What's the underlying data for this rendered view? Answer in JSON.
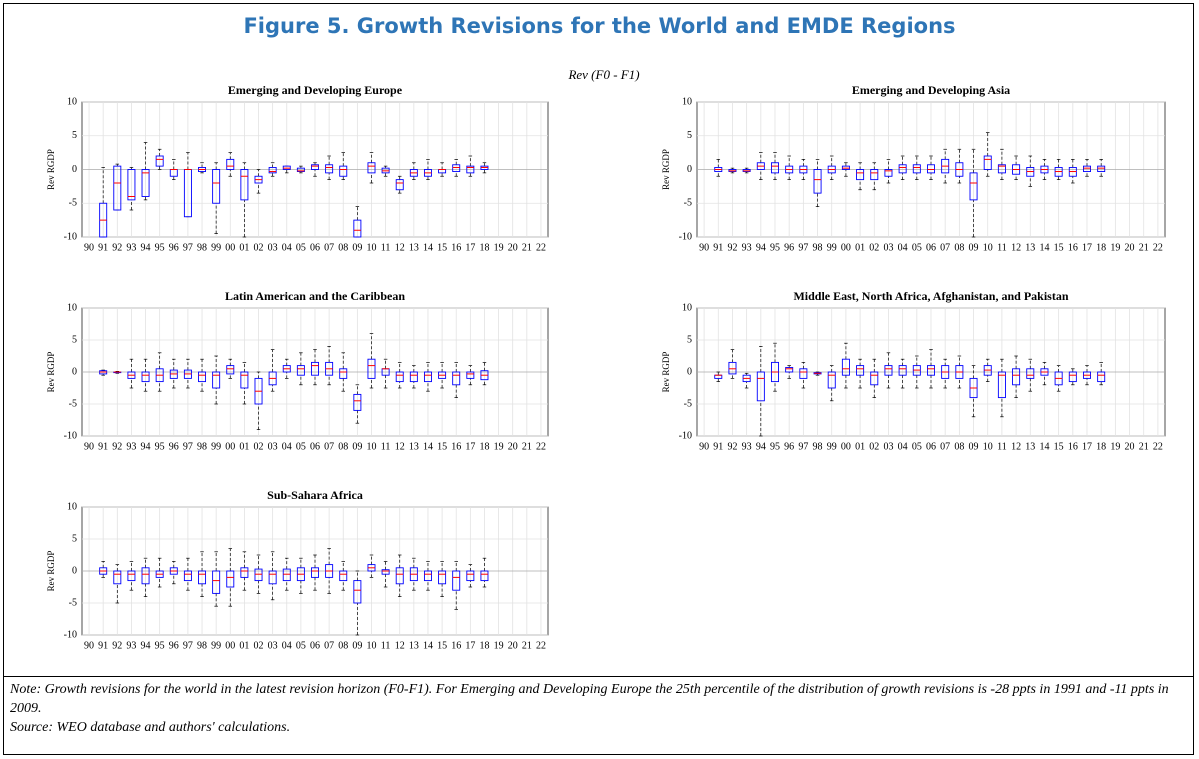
{
  "title": "Figure 5. Growth Revisions for the World and EMDE Regions",
  "suptitle": "Rev (F0 - F1)",
  "note": "Note: Growth revisions for the world in the latest revision horizon (F0-F1). For Emerging and Developing Europe the 25th percentile of the distribution of growth revisions is -28 ppts in 1991 and -11 ppts in 2009.",
  "source": "Source: WEO database and authors' calculations.",
  "chart_data": [
    {
      "type": "box",
      "title": "Emerging and Developing Europe",
      "ylabel": "Rev RGDP",
      "color": "#0000ff",
      "median_color": "#ff0000",
      "grid": true,
      "ylim": [
        -10,
        10
      ],
      "yticks": [
        -10,
        -5,
        0,
        5,
        10
      ],
      "categories": [
        "90",
        "91",
        "92",
        "93",
        "94",
        "95",
        "96",
        "97",
        "98",
        "99",
        "00",
        "01",
        "02",
        "03",
        "04",
        "05",
        "06",
        "07",
        "08",
        "09",
        "10",
        "11",
        "12",
        "13",
        "14",
        "15",
        "16",
        "17",
        "18",
        "19",
        "20",
        "21",
        "22"
      ],
      "boxes": [
        null,
        [
          -10,
          -10,
          -7.5,
          -5,
          0.3
        ],
        [
          -6,
          -6,
          -2,
          0.5,
          0.8
        ],
        [
          -6,
          -4.5,
          -4,
          0,
          0.3
        ],
        [
          -4.5,
          -4,
          -0.5,
          0,
          4
        ],
        [
          0,
          0.5,
          1.5,
          2,
          3
        ],
        [
          -1.5,
          -1,
          0,
          0,
          1.5
        ],
        [
          -7,
          -7,
          0,
          0,
          2.5
        ],
        [
          -0.5,
          -0.3,
          0,
          0.3,
          1
        ],
        [
          -9.5,
          -5,
          -2,
          0,
          1
        ],
        [
          -1,
          0,
          0.5,
          1.5,
          2.5
        ],
        [
          -10,
          -4.5,
          -1,
          0,
          1
        ],
        [
          -3.5,
          -2,
          -1.5,
          -1,
          0
        ],
        [
          -1,
          -0.5,
          -0.3,
          0.3,
          1
        ],
        [
          -0.5,
          0,
          0.2,
          0.5,
          0.5
        ],
        [
          -0.5,
          -0.3,
          -0.2,
          0.2,
          0.5
        ],
        [
          -1,
          0,
          0.5,
          0.7,
          1
        ],
        [
          -1.5,
          -0.5,
          0.3,
          0.7,
          2
        ],
        [
          -1.5,
          -1,
          0,
          0.5,
          2.5
        ],
        [
          -10,
          -10,
          -9,
          -7.5,
          -5.5
        ],
        [
          -2,
          -0.5,
          0.5,
          1,
          2.5
        ],
        [
          -1,
          -0.5,
          -0.2,
          0.2,
          0.5
        ],
        [
          -3.5,
          -3,
          -2,
          -1.5,
          -1
        ],
        [
          -1.5,
          -1,
          -0.5,
          0,
          1
        ],
        [
          -1.5,
          -1,
          -0.5,
          0,
          1.5
        ],
        [
          -1,
          -0.5,
          0,
          0,
          1
        ],
        [
          -1,
          -0.3,
          0.3,
          0.7,
          1.5
        ],
        [
          -1,
          -0.5,
          0.3,
          0.5,
          2
        ],
        [
          -0.5,
          0,
          0.3,
          0.5,
          1
        ],
        null,
        null,
        null,
        null
      ]
    },
    {
      "type": "box",
      "title": "Emerging and Developing Asia",
      "ylabel": "Rev RGDP",
      "color": "#0000ff",
      "median_color": "#ff0000",
      "grid": true,
      "ylim": [
        -10,
        10
      ],
      "yticks": [
        -10,
        -5,
        0,
        5,
        10
      ],
      "categories": [
        "90",
        "91",
        "92",
        "93",
        "94",
        "95",
        "96",
        "97",
        "98",
        "99",
        "00",
        "01",
        "02",
        "03",
        "04",
        "05",
        "06",
        "07",
        "08",
        "09",
        "10",
        "11",
        "12",
        "13",
        "14",
        "15",
        "16",
        "17",
        "18",
        "19",
        "20",
        "21",
        "22"
      ],
      "boxes": [
        null,
        [
          -1,
          -0.3,
          0,
          0.3,
          1.5
        ],
        [
          -0.5,
          -0.3,
          -0.2,
          0,
          0.2
        ],
        [
          -0.5,
          -0.3,
          -0.2,
          0,
          0.2
        ],
        [
          -1.5,
          0,
          0.5,
          1,
          2.5
        ],
        [
          -1.5,
          -0.5,
          0.5,
          1,
          2.5
        ],
        [
          -1.5,
          -0.5,
          0,
          0.5,
          2
        ],
        [
          -1.5,
          -0.5,
          0,
          0.5,
          1.5
        ],
        [
          -5.5,
          -3.5,
          -1.5,
          0,
          1.5
        ],
        [
          -1.5,
          -0.5,
          0,
          0.5,
          2
        ],
        [
          -1,
          0,
          0.2,
          0.5,
          1
        ],
        [
          -3,
          -1.5,
          -0.5,
          0,
          1
        ],
        [
          -3,
          -1.5,
          -0.5,
          0,
          1
        ],
        [
          -2,
          -1,
          -0.2,
          0,
          1.5
        ],
        [
          -1.5,
          -0.5,
          0.3,
          0.7,
          2
        ],
        [
          -1.5,
          -0.5,
          0.3,
          0.7,
          2
        ],
        [
          -1.5,
          -0.5,
          0,
          0.7,
          2
        ],
        [
          -2,
          -0.5,
          0.5,
          1.5,
          3
        ],
        [
          -2,
          -1,
          0,
          1,
          3
        ],
        [
          -10,
          -4.5,
          -2,
          -0.5,
          3
        ],
        [
          -1,
          0,
          1.5,
          2,
          5.5
        ],
        [
          -1.5,
          -0.5,
          0.5,
          0.7,
          3
        ],
        [
          -1.5,
          -0.7,
          0,
          0.7,
          2
        ],
        [
          -2.5,
          -1,
          -0.3,
          0.3,
          2
        ],
        [
          -1.5,
          -0.5,
          0,
          0.5,
          1.5
        ],
        [
          -1.5,
          -1,
          -0.3,
          0.3,
          1.5
        ],
        [
          -2,
          -1,
          -0.3,
          0.3,
          1.5
        ],
        [
          -1,
          -0.3,
          0.2,
          0.5,
          1.5
        ],
        [
          -1,
          -0.3,
          0.2,
          0.5,
          1.5
        ],
        null,
        null,
        null,
        null
      ]
    },
    {
      "type": "box",
      "title": "Latin American and the Caribbean",
      "ylabel": "Rev RGDP",
      "color": "#0000ff",
      "median_color": "#ff0000",
      "grid": true,
      "ylim": [
        -10,
        10
      ],
      "yticks": [
        -10,
        -5,
        0,
        5,
        10
      ],
      "categories": [
        "90",
        "91",
        "92",
        "93",
        "94",
        "95",
        "96",
        "97",
        "98",
        "99",
        "00",
        "01",
        "02",
        "03",
        "04",
        "05",
        "06",
        "07",
        "08",
        "09",
        "10",
        "11",
        "12",
        "13",
        "14",
        "15",
        "16",
        "17",
        "18",
        "19",
        "20",
        "21",
        "22"
      ],
      "boxes": [
        null,
        [
          -0.5,
          -0.3,
          0,
          0.2,
          0.3
        ],
        [
          -0.2,
          -0.1,
          0,
          0,
          0.1
        ],
        [
          -2.5,
          -1,
          -0.5,
          0,
          2
        ],
        [
          -3,
          -1.5,
          -0.5,
          0,
          2
        ],
        [
          -3,
          -1.5,
          -0.5,
          0.5,
          3
        ],
        [
          -2.5,
          -1,
          -0.3,
          0.3,
          2
        ],
        [
          -2.5,
          -1,
          -0.3,
          0.3,
          2
        ],
        [
          -3,
          -1.5,
          -0.5,
          0,
          2
        ],
        [
          -5,
          -2.5,
          -0.5,
          0,
          2.5
        ],
        [
          -1,
          -0.3,
          0.5,
          1,
          2
        ],
        [
          -5,
          -2.5,
          -0.5,
          0,
          1.5
        ],
        [
          -9,
          -5,
          -3,
          -1,
          0
        ],
        [
          -3,
          -2,
          -1,
          0,
          3.5
        ],
        [
          -1,
          0,
          0.5,
          1,
          2
        ],
        [
          -2,
          -0.5,
          0.5,
          1,
          3
        ],
        [
          -2,
          -0.5,
          1,
          1.5,
          3.5
        ],
        [
          -2,
          -0.5,
          0.5,
          1.5,
          4
        ],
        [
          -3,
          -1,
          0,
          0.5,
          3
        ],
        [
          -8,
          -6,
          -4.5,
          -3.5,
          -2
        ],
        [
          -2.5,
          -1,
          1,
          2,
          6
        ],
        [
          -2.5,
          -0.5,
          0.5,
          0.5,
          2
        ],
        [
          -2.5,
          -1.5,
          -0.5,
          0,
          1.5
        ],
        [
          -2.5,
          -1.5,
          -0.5,
          0,
          1
        ],
        [
          -3,
          -1.5,
          -0.5,
          0,
          1.5
        ],
        [
          -2.5,
          -1,
          -0.5,
          0,
          1.5
        ],
        [
          -4,
          -2,
          -0.5,
          0,
          1.5
        ],
        [
          -2,
          -1,
          -0.3,
          0,
          1
        ],
        [
          -2,
          -1.2,
          -0.5,
          0.2,
          1.5
        ],
        null,
        null,
        null,
        null
      ]
    },
    {
      "type": "box",
      "title": "Middle East, North Africa, Afghanistan, and Pakistan",
      "ylabel": "Rev RGDP",
      "color": "#0000ff",
      "median_color": "#ff0000",
      "grid": true,
      "ylim": [
        -10,
        10
      ],
      "yticks": [
        -10,
        -5,
        0,
        5,
        10
      ],
      "categories": [
        "90",
        "91",
        "92",
        "93",
        "94",
        "95",
        "96",
        "97",
        "98",
        "99",
        "00",
        "01",
        "02",
        "03",
        "04",
        "05",
        "06",
        "07",
        "08",
        "09",
        "10",
        "11",
        "12",
        "13",
        "14",
        "15",
        "16",
        "17",
        "18",
        "19",
        "20",
        "21",
        "22"
      ],
      "boxes": [
        null,
        [
          -1.5,
          -1,
          -0.5,
          -0.5,
          0
        ],
        [
          -1,
          -0.3,
          0.5,
          1.5,
          3.5
        ],
        [
          -2.5,
          -1.5,
          -1,
          -0.5,
          -0.2
        ],
        [
          -10,
          -4.5,
          -1,
          0,
          4
        ],
        [
          -3,
          -1.5,
          0,
          1.5,
          4.5
        ],
        [
          -1,
          0,
          0.5,
          0.7,
          1
        ],
        [
          -2.5,
          -1,
          0,
          0.5,
          1.5
        ],
        [
          -0.5,
          -0.3,
          -0.2,
          -0.1,
          0
        ],
        [
          -4.5,
          -2.5,
          -0.5,
          0,
          1
        ],
        [
          -2.5,
          -0.5,
          0.5,
          2,
          4.5
        ],
        [
          -2.5,
          -0.5,
          0.5,
          1,
          2
        ],
        [
          -4,
          -2,
          -0.5,
          0,
          2
        ],
        [
          -2.5,
          -0.5,
          0.5,
          1,
          3
        ],
        [
          -2.5,
          -0.5,
          0.5,
          1,
          2
        ],
        [
          -2.5,
          -0.5,
          0.3,
          1,
          2.5
        ],
        [
          -2.5,
          -0.5,
          0.5,
          1,
          3.5
        ],
        [
          -2.5,
          -1,
          0,
          1,
          2
        ],
        [
          -2.5,
          -1,
          0,
          1,
          2.5
        ],
        [
          -7,
          -4,
          -2.5,
          -1,
          1
        ],
        [
          -1.5,
          -0.5,
          0.3,
          1,
          2
        ],
        [
          -7,
          -4,
          -0.5,
          0,
          2
        ],
        [
          -4,
          -2,
          -0.5,
          0.5,
          2.5
        ],
        [
          -3,
          -1,
          -0.5,
          0.5,
          2
        ],
        [
          -2,
          -0.5,
          0,
          0.5,
          1.5
        ],
        [
          -3,
          -2,
          -1,
          0,
          1
        ],
        [
          -2,
          -1.5,
          -0.5,
          0,
          0.5
        ],
        [
          -2,
          -1,
          -0.5,
          0,
          1
        ],
        [
          -2,
          -1.5,
          -0.5,
          0,
          1.5
        ],
        null,
        null,
        null,
        null
      ]
    },
    {
      "type": "box",
      "title": "Sub-Sahara Africa",
      "ylabel": "Rev RGDP",
      "color": "#0000ff",
      "median_color": "#ff0000",
      "grid": true,
      "ylim": [
        -10,
        10
      ],
      "yticks": [
        -10,
        -5,
        0,
        5,
        10
      ],
      "categories": [
        "90",
        "91",
        "92",
        "93",
        "94",
        "95",
        "96",
        "97",
        "98",
        "99",
        "00",
        "01",
        "02",
        "03",
        "04",
        "05",
        "06",
        "07",
        "08",
        "09",
        "10",
        "11",
        "12",
        "13",
        "14",
        "15",
        "16",
        "17",
        "18",
        "19",
        "20",
        "21",
        "22"
      ],
      "boxes": [
        null,
        [
          -1,
          -0.5,
          0,
          0.5,
          1.5
        ],
        [
          -5,
          -2,
          -0.5,
          0,
          1
        ],
        [
          -3,
          -1.5,
          -0.5,
          0,
          1.5
        ],
        [
          -4,
          -2,
          -0.5,
          0.5,
          2
        ],
        [
          -2.5,
          -1,
          -0.5,
          0,
          2
        ],
        [
          -2,
          -0.5,
          0,
          0.5,
          1.5
        ],
        [
          -3,
          -1.5,
          -0.5,
          0,
          2
        ],
        [
          -4,
          -2,
          -0.5,
          0,
          3
        ],
        [
          -5.5,
          -3.5,
          -1.5,
          0,
          3
        ],
        [
          -5.5,
          -2.5,
          -1,
          0,
          3.5
        ],
        [
          -3,
          -1,
          0,
          0.5,
          3
        ],
        [
          -3.5,
          -1.5,
          -0.5,
          0.3,
          2.5
        ],
        [
          -4.5,
          -2,
          -0.5,
          0,
          3
        ],
        [
          -3,
          -1.5,
          -0.5,
          0.3,
          2
        ],
        [
          -3.5,
          -1.5,
          -0.5,
          0.5,
          2
        ],
        [
          -3,
          -1,
          0,
          0.5,
          2.5
        ],
        [
          -3.5,
          -1,
          0,
          1,
          3.5
        ],
        [
          -3,
          -1.5,
          -0.5,
          0,
          1.5
        ],
        [
          -10,
          -5,
          -3,
          -1.5,
          0
        ],
        [
          -1,
          0,
          0.5,
          1,
          2.5
        ],
        [
          -2.5,
          -0.5,
          0,
          0.2,
          1.5
        ],
        [
          -4,
          -2,
          -0.5,
          0.5,
          2.5
        ],
        [
          -3,
          -1.5,
          -0.5,
          0.5,
          2
        ],
        [
          -3,
          -1.5,
          -0.5,
          0,
          1.5
        ],
        [
          -4,
          -2,
          -0.5,
          0,
          1.5
        ],
        [
          -6,
          -3,
          -1,
          0,
          1.5
        ],
        [
          -2.5,
          -1.5,
          -0.5,
          0,
          1
        ],
        [
          -2.5,
          -1.5,
          -0.5,
          0,
          2
        ],
        null,
        null,
        null,
        null
      ]
    }
  ]
}
